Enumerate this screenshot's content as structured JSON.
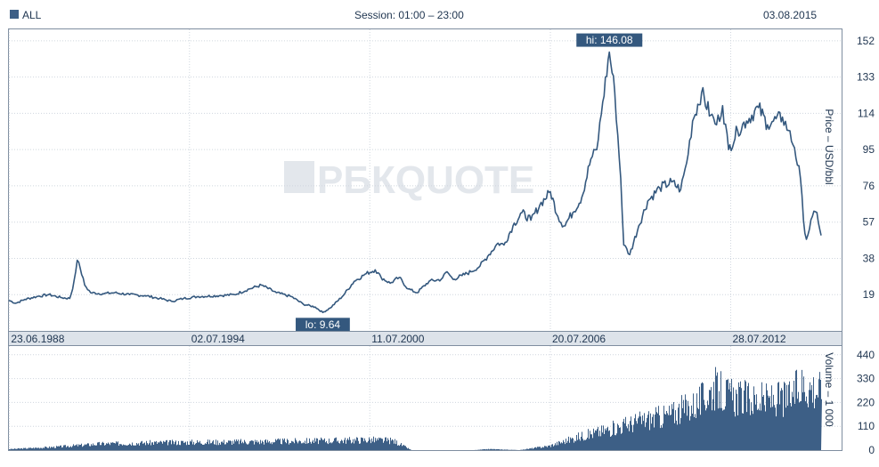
{
  "header": {
    "legend_label": "ALL",
    "session": "Session: 01:00 – 23:00",
    "date": "03.08.2015"
  },
  "watermark": "РБКQUOTE",
  "colors": {
    "series": "#34587e",
    "volume": "#3d5f86",
    "grid": "#cfd6de",
    "frame": "#7f8ea0",
    "axis_band": "#dde3ea",
    "annotation_bg": "#34587e"
  },
  "chart_data": [
    {
      "type": "line",
      "ylabel": "Price – USD/bbl",
      "ylim": [
        0,
        158
      ],
      "yticks": [
        19,
        38,
        57,
        76,
        95,
        114,
        133,
        152
      ],
      "xlim": [
        1988.47,
        2015.59
      ],
      "grid": true,
      "x_ticks": [
        {
          "x": 1988.48,
          "label": "23.06.1988"
        },
        {
          "x": 1994.5,
          "label": "02.07.1994"
        },
        {
          "x": 2000.52,
          "label": "11.07.2000"
        },
        {
          "x": 2006.55,
          "label": "20.07.2006"
        },
        {
          "x": 2012.57,
          "label": "28.07.2012"
        }
      ],
      "annotations": [
        {
          "x": 1998.95,
          "y": 9.64,
          "label": "lo: 9.64",
          "position": "below"
        },
        {
          "x": 2008.52,
          "y": 146.08,
          "label": "hi: 146.08",
          "position": "above"
        }
      ],
      "series": [
        {
          "x": [
            1988.47,
            1988.7,
            1989.0,
            1989.4,
            1989.8,
            1990.2,
            1990.5,
            1990.6,
            1990.75,
            1990.85,
            1991.0,
            1991.2,
            1991.6,
            1992.0,
            1992.5,
            1993.0,
            1993.5,
            1993.9,
            1994.3,
            1994.8,
            1995.5,
            1996.0,
            1996.5,
            1996.9,
            1997.4,
            1997.9,
            1998.3,
            1998.7,
            1998.95,
            1999.2,
            1999.6,
            2000.0,
            2000.4,
            2000.7,
            2000.9,
            2001.2,
            2001.5,
            2001.8,
            2002.1,
            2002.5,
            2002.9,
            2003.1,
            2003.3,
            2003.6,
            2003.9,
            2004.2,
            2004.5,
            2004.8,
            2005.0,
            2005.3,
            2005.6,
            2005.9,
            2006.2,
            2006.55,
            2006.8,
            2007.0,
            2007.3,
            2007.6,
            2007.9,
            2008.1,
            2008.3,
            2008.52,
            2008.7,
            2008.9,
            2009.0,
            2009.2,
            2009.5,
            2009.8,
            2010.2,
            2010.6,
            2010.9,
            2011.1,
            2011.3,
            2011.6,
            2011.9,
            2012.1,
            2012.3,
            2012.5,
            2012.8,
            2013.1,
            2013.5,
            2013.8,
            2014.0,
            2014.3,
            2014.5,
            2014.7,
            2014.9,
            2015.0,
            2015.1,
            2015.3,
            2015.45,
            2015.59
          ],
          "y": [
            16,
            14.5,
            16.5,
            18,
            19,
            17.5,
            17,
            22,
            37,
            33,
            24,
            20,
            19.5,
            20,
            19,
            18.5,
            17,
            15.5,
            17,
            18,
            18.5,
            19,
            22,
            24,
            20,
            18,
            14,
            12.5,
            9.64,
            12,
            18,
            26,
            30,
            32,
            28,
            25,
            28,
            22,
            20,
            26,
            27,
            31,
            27,
            29,
            31,
            34,
            40,
            46,
            45,
            55,
            62,
            58,
            66,
            73,
            60,
            55,
            62,
            70,
            90,
            95,
            120,
            146.08,
            125,
            80,
            45,
            40,
            55,
            68,
            75,
            78,
            74,
            88,
            110,
            125,
            113,
            108,
            118,
            95,
            105,
            110,
            117,
            108,
            110,
            112,
            105,
            96,
            80,
            58,
            48,
            60,
            62,
            50
          ]
        }
      ]
    },
    {
      "type": "bar",
      "ylabel": "Volume – 1 000",
      "ylim": [
        0,
        480
      ],
      "yticks": [
        0,
        110,
        220,
        330,
        440
      ],
      "grid": true,
      "series": [
        {
          "x": [
            1988.5,
            1990.0,
            1991.5,
            1993.0,
            1994.5,
            1996.0,
            1997.5,
            1999.0,
            2000.5,
            2001.3,
            2001.9,
            2003.0,
            2004.0,
            2004.5,
            2005.5,
            2006.5,
            2007.5,
            2008.5,
            2009.5,
            2010.5,
            2011.5,
            2012.0,
            2012.5,
            2013.5,
            2014.5,
            2015.0,
            2015.5
          ],
          "y": [
            5,
            15,
            30,
            35,
            38,
            40,
            42,
            45,
            50,
            45,
            0,
            0,
            0,
            5,
            0,
            20,
            65,
            100,
            140,
            170,
            230,
            300,
            260,
            240,
            250,
            320,
            290
          ]
        }
      ]
    }
  ]
}
